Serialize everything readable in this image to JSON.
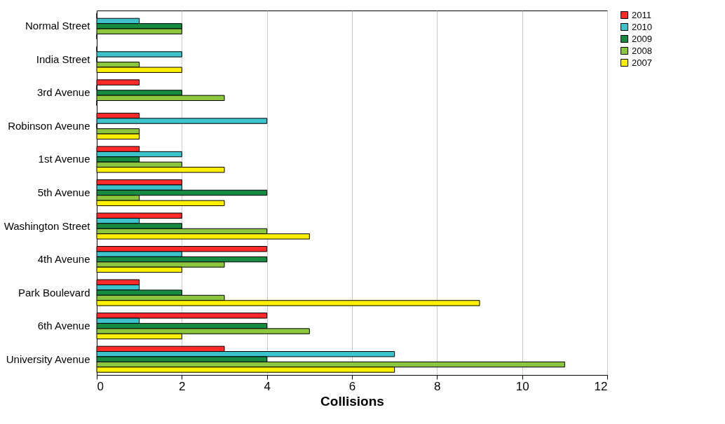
{
  "chart_data": {
    "type": "bar",
    "orientation": "horizontal",
    "xlabel": "Collisions",
    "categories": [
      "Normal Street",
      "India Street",
      "3rd Avenue",
      "Robinson Aveune",
      "1st Avenue",
      "5th Avenue",
      "Washington Street",
      "4th Aveune",
      "Park Boulevard",
      "6th Avenue",
      "University Avenue"
    ],
    "series": [
      {
        "name": "2011",
        "color": "#ff2a2a",
        "values": [
          0,
          0,
          1,
          1,
          1,
          2,
          2,
          4,
          1,
          4,
          3
        ]
      },
      {
        "name": "2010",
        "color": "#3cc3cc",
        "values": [
          1,
          2,
          0,
          4,
          2,
          2,
          1,
          2,
          1,
          1,
          7
        ]
      },
      {
        "name": "2009",
        "color": "#168a40",
        "values": [
          2,
          0,
          2,
          0,
          1,
          4,
          2,
          4,
          2,
          4,
          4
        ]
      },
      {
        "name": "2008",
        "color": "#8cc63f",
        "values": [
          2,
          1,
          3,
          1,
          2,
          1,
          4,
          3,
          3,
          5,
          11
        ]
      },
      {
        "name": "2007",
        "color": "#fff000",
        "values": [
          0,
          2,
          0,
          1,
          3,
          3,
          5,
          2,
          9,
          2,
          7
        ]
      }
    ],
    "xlim": [
      0,
      12
    ],
    "xticks": [
      0,
      2,
      4,
      6,
      8,
      10,
      12
    ],
    "grid": "x",
    "legend": "right"
  }
}
